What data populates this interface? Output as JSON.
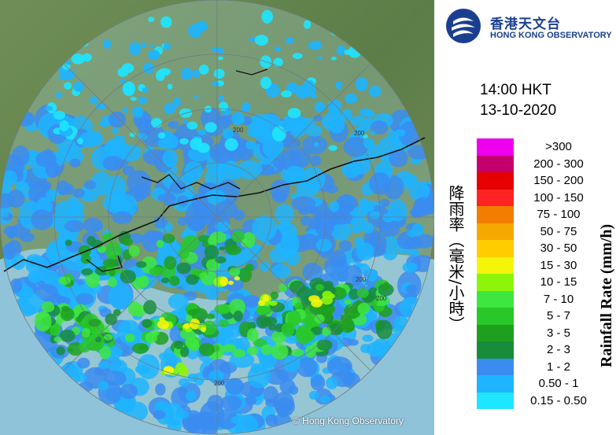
{
  "header": {
    "logo_icon": "hko-logo-icon",
    "org_name_cn": "香港天文台",
    "org_name_en": "HONG KONG OBSERVATORY"
  },
  "timestamp": {
    "time": "14:00 HKT",
    "date": "13-10-2020"
  },
  "map": {
    "range_ring_labels": [
      "200",
      "200",
      "200",
      "200",
      "200"
    ],
    "copyright": "© Hong Kong Observatory"
  },
  "legend": {
    "title_cn": "降雨率（毫米/小時）",
    "title_en": "Rainfall Rate (mm/h)",
    "items": [
      {
        "label": ">300",
        "color": "#ee00ee"
      },
      {
        "label": "200 - 300",
        "color": "#c4006e"
      },
      {
        "label": "150 - 200",
        "color": "#e60000"
      },
      {
        "label": "100 - 150",
        "color": "#ff2323"
      },
      {
        "label": "75 - 100",
        "color": "#f27d00"
      },
      {
        "label": "50 - 75",
        "color": "#f5a800"
      },
      {
        "label": "30 - 50",
        "color": "#ffcc00"
      },
      {
        "label": "15 - 30",
        "color": "#f5f50a"
      },
      {
        "label": "10 - 15",
        "color": "#8cf50a"
      },
      {
        "label": "7 - 10",
        "color": "#3fe63f"
      },
      {
        "label": "5 - 7",
        "color": "#28c828"
      },
      {
        "label": "3 - 5",
        "color": "#1ea01e"
      },
      {
        "label": "2 - 3",
        "color": "#198c3c"
      },
      {
        "label": "1 - 2",
        "color": "#3b8cf0"
      },
      {
        "label": "0.50 - 1",
        "color": "#1eb4ff"
      },
      {
        "label": "0.15 - 0.50",
        "color": "#1ee6ff"
      }
    ]
  }
}
